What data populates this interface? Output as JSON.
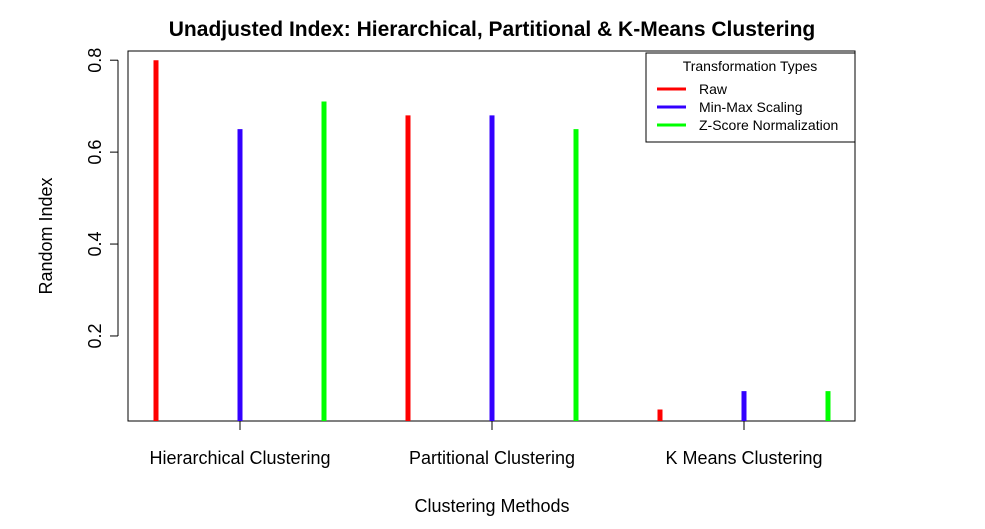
{
  "chart_data": {
    "type": "bar",
    "title": "Unadjusted Index: Hierarchical, Partitional & K-Means Clustering",
    "xlabel": "Clustering Methods",
    "ylabel": "Random Index",
    "categories": [
      "Hierarchical Clustering",
      "Partitional Clustering",
      "K Means Clustering"
    ],
    "yticks": [
      "0.2",
      "0.4",
      "0.6",
      "0.8"
    ],
    "ylim": [
      0.015,
      0.82
    ],
    "legend": {
      "title": "Transformation Types",
      "position": "top-right"
    },
    "series": [
      {
        "name": "Raw",
        "color": "#ff0000",
        "values": [
          0.8,
          0.68,
          0.04
        ]
      },
      {
        "name": "Min-Max Scaling",
        "color": "#3300ff",
        "values": [
          0.65,
          0.68,
          0.08
        ]
      },
      {
        "name": "Z-Score Normalization",
        "color": "#00ff00",
        "values": [
          0.71,
          0.65,
          0.08
        ]
      }
    ],
    "grid": false
  }
}
